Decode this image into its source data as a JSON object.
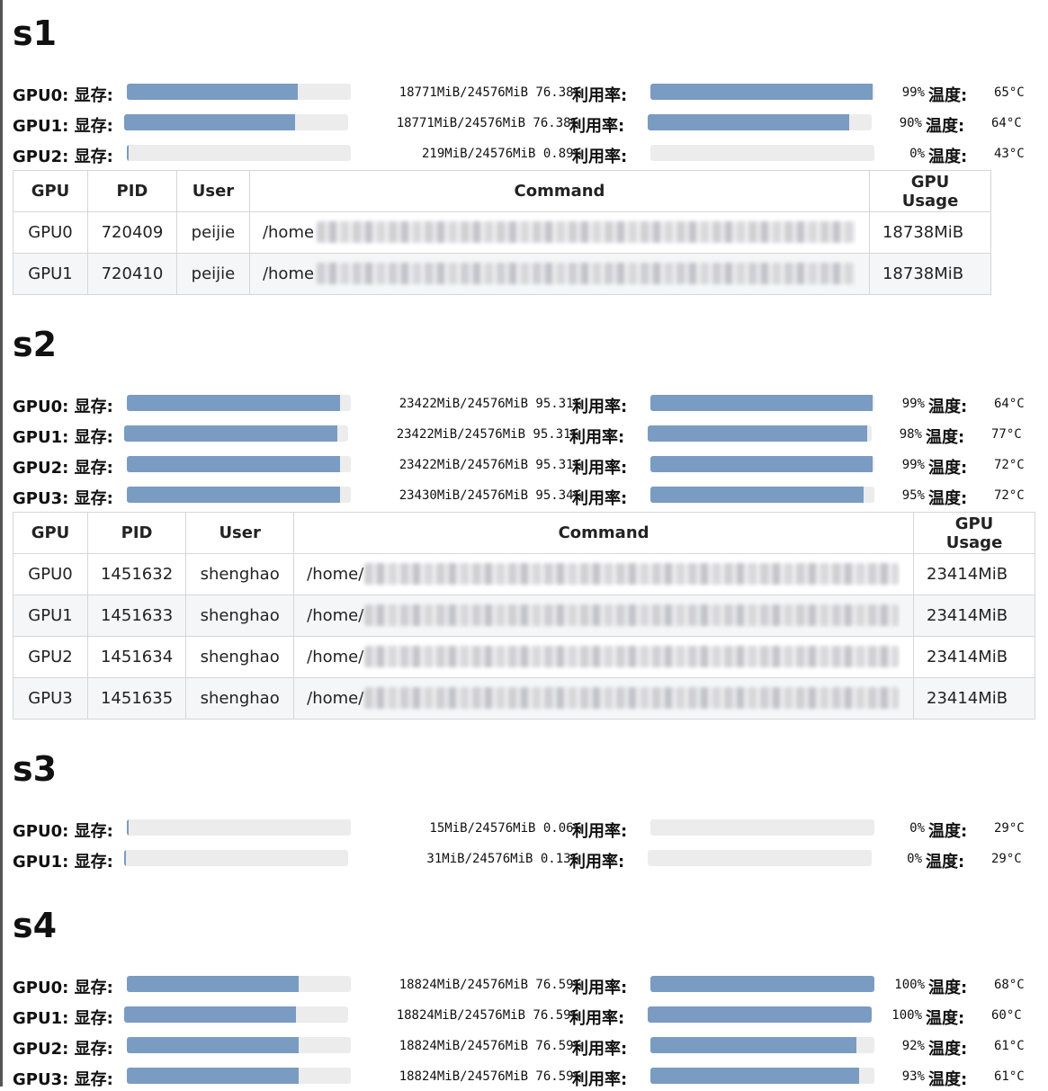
{
  "labels": {
    "mem": "显存:",
    "util": "利用率:",
    "temp": "温度:"
  },
  "colors": {
    "bar_fill": "#7a9bc2",
    "bar_track": "#ececec"
  },
  "servers": [
    {
      "name": "s1",
      "gpus": [
        {
          "id": "GPU0",
          "mem_text": "18771MiB/24576MiB 76.38%",
          "mem_fraction": 0.7638,
          "util_text": "99%",
          "util_fraction": 0.99,
          "temp": "65°C"
        },
        {
          "id": "GPU1",
          "mem_text": "18771MiB/24576MiB 76.38%",
          "mem_fraction": 0.7638,
          "util_text": "90%",
          "util_fraction": 0.9,
          "temp": "64°C"
        },
        {
          "id": "GPU2",
          "mem_text": "219MiB/24576MiB 0.89%",
          "mem_fraction": 0.0089,
          "util_text": "0%",
          "util_fraction": 0.0,
          "temp": "43°C"
        }
      ],
      "table": {
        "headers": [
          "GPU",
          "PID",
          "User",
          "Command",
          "GPU Usage"
        ],
        "rows": [
          [
            "GPU0",
            "720409",
            "peijie",
            "/home",
            "18738MiB"
          ],
          [
            "GPU1",
            "720410",
            "peijie",
            "/home",
            "18738MiB"
          ]
        ]
      }
    },
    {
      "name": "s2",
      "gpus": [
        {
          "id": "GPU0",
          "mem_text": "23422MiB/24576MiB 95.31%",
          "mem_fraction": 0.9531,
          "util_text": "99%",
          "util_fraction": 0.99,
          "temp": "64°C"
        },
        {
          "id": "GPU1",
          "mem_text": "23422MiB/24576MiB 95.31%",
          "mem_fraction": 0.9531,
          "util_text": "98%",
          "util_fraction": 0.98,
          "temp": "77°C"
        },
        {
          "id": "GPU2",
          "mem_text": "23422MiB/24576MiB 95.31%",
          "mem_fraction": 0.9531,
          "util_text": "99%",
          "util_fraction": 0.99,
          "temp": "72°C"
        },
        {
          "id": "GPU3",
          "mem_text": "23430MiB/24576MiB 95.34%",
          "mem_fraction": 0.9534,
          "util_text": "95%",
          "util_fraction": 0.95,
          "temp": "72°C"
        }
      ],
      "table": {
        "headers": [
          "GPU",
          "PID",
          "User",
          "Command",
          "GPU Usage"
        ],
        "rows": [
          [
            "GPU0",
            "1451632",
            "shenghao",
            "/home/",
            "23414MiB"
          ],
          [
            "GPU1",
            "1451633",
            "shenghao",
            "/home/",
            "23414MiB"
          ],
          [
            "GPU2",
            "1451634",
            "shenghao",
            "/home/",
            "23414MiB"
          ],
          [
            "GPU3",
            "1451635",
            "shenghao",
            "/home/",
            "23414MiB"
          ]
        ]
      }
    },
    {
      "name": "s3",
      "gpus": [
        {
          "id": "GPU0",
          "mem_text": "15MiB/24576MiB 0.06%",
          "mem_fraction": 0.0006,
          "util_text": "0%",
          "util_fraction": 0.0,
          "temp": "29°C"
        },
        {
          "id": "GPU1",
          "mem_text": "31MiB/24576MiB 0.13%",
          "mem_fraction": 0.0013,
          "util_text": "0%",
          "util_fraction": 0.0,
          "temp": "29°C"
        }
      ]
    },
    {
      "name": "s4",
      "gpus": [
        {
          "id": "GPU0",
          "mem_text": "18824MiB/24576MiB 76.59%",
          "mem_fraction": 0.7659,
          "util_text": "100%",
          "util_fraction": 1.0,
          "temp": "68°C"
        },
        {
          "id": "GPU1",
          "mem_text": "18824MiB/24576MiB 76.59%",
          "mem_fraction": 0.7659,
          "util_text": "100%",
          "util_fraction": 1.0,
          "temp": "60°C"
        },
        {
          "id": "GPU2",
          "mem_text": "18824MiB/24576MiB 76.59%",
          "mem_fraction": 0.7659,
          "util_text": "92%",
          "util_fraction": 0.92,
          "temp": "61°C"
        },
        {
          "id": "GPU3",
          "mem_text": "18824MiB/24576MiB 76.59%",
          "mem_fraction": 0.7659,
          "util_text": "93%",
          "util_fraction": 0.93,
          "temp": "61°C"
        }
      ]
    }
  ]
}
